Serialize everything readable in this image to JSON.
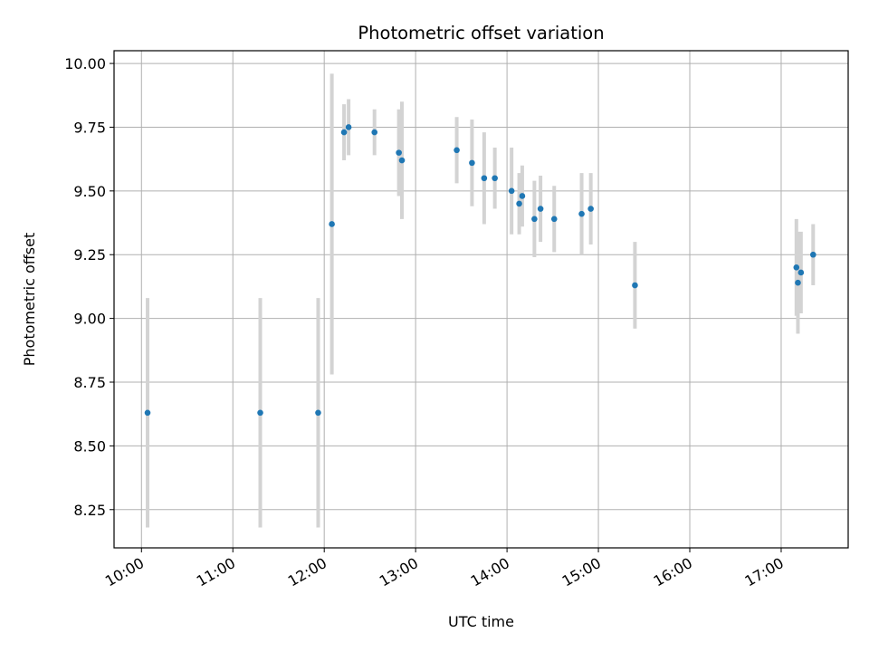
{
  "chart_data": {
    "type": "scatter",
    "title": "Photometric offset variation",
    "xlabel": "UTC time",
    "ylabel": "Photometric offset",
    "x_unit": "UTC time of day (HH:MM)",
    "xlim": [
      "09:42",
      "17:44"
    ],
    "ylim": [
      8.1,
      10.05
    ],
    "x_ticks": [
      "10:00",
      "11:00",
      "12:00",
      "13:00",
      "14:00",
      "15:00",
      "16:00",
      "17:00"
    ],
    "y_ticks": [
      "8.25",
      "8.50",
      "8.75",
      "9.00",
      "9.25",
      "9.50",
      "9.75",
      "10.00"
    ],
    "grid": true,
    "legend": "none",
    "colors": {
      "point": "#1f77b4",
      "errorbar": "#d3d3d3",
      "grid": "#b0b0b0",
      "axis": "#000000"
    },
    "points": [
      {
        "x": "10:04",
        "y": 8.63,
        "err": 0.45
      },
      {
        "x": "11:18",
        "y": 8.63,
        "err": 0.45
      },
      {
        "x": "11:56",
        "y": 8.63,
        "err": 0.45
      },
      {
        "x": "12:05",
        "y": 9.37,
        "err": 0.59
      },
      {
        "x": "12:13",
        "y": 9.73,
        "err": 0.11
      },
      {
        "x": "12:16",
        "y": 9.75,
        "err": 0.11
      },
      {
        "x": "12:33",
        "y": 9.73,
        "err": 0.09
      },
      {
        "x": "12:49",
        "y": 9.65,
        "err": 0.17
      },
      {
        "x": "12:51",
        "y": 9.62,
        "err": 0.23
      },
      {
        "x": "13:27",
        "y": 9.66,
        "err": 0.13
      },
      {
        "x": "13:37",
        "y": 9.61,
        "err": 0.17
      },
      {
        "x": "13:45",
        "y": 9.55,
        "err": 0.18
      },
      {
        "x": "13:52",
        "y": 9.55,
        "err": 0.12
      },
      {
        "x": "14:03",
        "y": 9.5,
        "err": 0.17
      },
      {
        "x": "14:08",
        "y": 9.45,
        "err": 0.12
      },
      {
        "x": "14:10",
        "y": 9.48,
        "err": 0.12
      },
      {
        "x": "14:18",
        "y": 9.39,
        "err": 0.15
      },
      {
        "x": "14:22",
        "y": 9.43,
        "err": 0.13
      },
      {
        "x": "14:31",
        "y": 9.39,
        "err": 0.13
      },
      {
        "x": "14:49",
        "y": 9.41,
        "err": 0.16
      },
      {
        "x": "14:55",
        "y": 9.43,
        "err": 0.14
      },
      {
        "x": "15:24",
        "y": 9.13,
        "err": 0.17
      },
      {
        "x": "17:10",
        "y": 9.2,
        "err": 0.19
      },
      {
        "x": "17:11",
        "y": 9.14,
        "err": 0.2
      },
      {
        "x": "17:13",
        "y": 9.18,
        "err": 0.16
      },
      {
        "x": "17:21",
        "y": 9.25,
        "err": 0.12
      }
    ]
  }
}
